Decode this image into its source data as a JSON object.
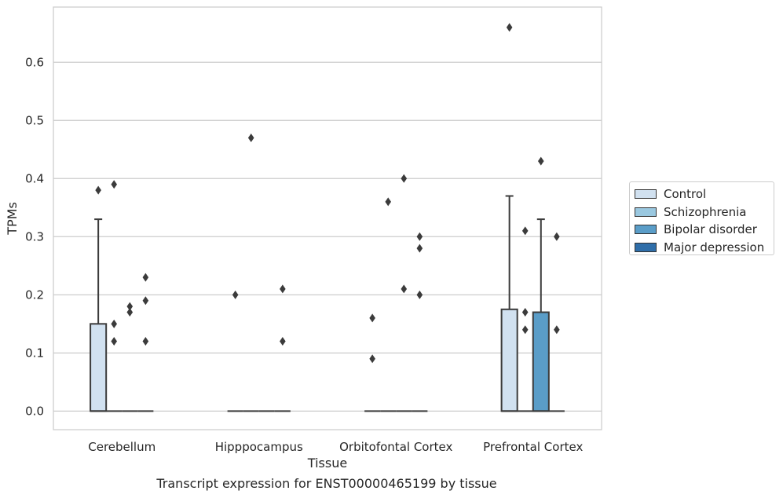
{
  "chart_data": {
    "type": "box",
    "caption": "Transcript expression for ENST00000465199 by tissue",
    "xlabel": "Tissue",
    "ylabel": "TPMs",
    "ylim": [
      -0.032,
      0.695
    ],
    "yticks": [
      "0.0",
      "0.1",
      "0.2",
      "0.3",
      "0.4",
      "0.5",
      "0.6"
    ],
    "grid": "horizontal",
    "legend_position": "right",
    "categories": [
      "Cerebellum",
      "Hipppocampus",
      "Orbitofontal Cortex",
      "Prefrontal Cortex"
    ],
    "series": [
      {
        "name": "Control",
        "color": "#d1e1f0"
      },
      {
        "name": "Schizophrenia",
        "color": "#9ac8e0"
      },
      {
        "name": "Bipolar disorder",
        "color": "#5a9dc8"
      },
      {
        "name": "Major depression",
        "color": "#2f6ea9"
      }
    ],
    "boxes": [
      {
        "category": 0,
        "series": 0,
        "q1": 0,
        "median": 0,
        "q3": 0.15,
        "whisker_low": 0,
        "whisker_high": 0.33,
        "outliers": [
          0.38
        ]
      },
      {
        "category": 0,
        "series": 1,
        "q1": 0,
        "median": 0,
        "q3": 0,
        "whisker_low": 0,
        "whisker_high": 0,
        "outliers": [
          0.39,
          0.15,
          0.12
        ]
      },
      {
        "category": 0,
        "series": 2,
        "q1": 0,
        "median": 0,
        "q3": 0,
        "whisker_low": 0,
        "whisker_high": 0,
        "outliers": [
          0.18,
          0.17
        ]
      },
      {
        "category": 0,
        "series": 3,
        "q1": 0,
        "median": 0,
        "q3": 0,
        "whisker_low": 0,
        "whisker_high": 0,
        "outliers": [
          0.23,
          0.19,
          0.12
        ]
      },
      {
        "category": 1,
        "series": 0,
        "q1": 0,
        "median": 0,
        "q3": 0,
        "whisker_low": 0,
        "whisker_high": 0,
        "outliers": [
          0.2
        ]
      },
      {
        "category": 1,
        "series": 1,
        "q1": 0,
        "median": 0,
        "q3": 0,
        "whisker_low": 0,
        "whisker_high": 0,
        "outliers": [
          0.47
        ]
      },
      {
        "category": 1,
        "series": 2,
        "q1": 0,
        "median": 0,
        "q3": 0,
        "whisker_low": 0,
        "whisker_high": 0,
        "outliers": []
      },
      {
        "category": 1,
        "series": 3,
        "q1": 0,
        "median": 0,
        "q3": 0,
        "whisker_low": 0,
        "whisker_high": 0,
        "outliers": [
          0.21,
          0.12
        ]
      },
      {
        "category": 2,
        "series": 0,
        "q1": 0,
        "median": 0,
        "q3": 0,
        "whisker_low": 0,
        "whisker_high": 0,
        "outliers": [
          0.16,
          0.09
        ]
      },
      {
        "category": 2,
        "series": 1,
        "q1": 0,
        "median": 0,
        "q3": 0,
        "whisker_low": 0,
        "whisker_high": 0,
        "outliers": [
          0.36
        ]
      },
      {
        "category": 2,
        "series": 2,
        "q1": 0,
        "median": 0,
        "q3": 0,
        "whisker_low": 0,
        "whisker_high": 0,
        "outliers": [
          0.4,
          0.21
        ]
      },
      {
        "category": 2,
        "series": 3,
        "q1": 0,
        "median": 0,
        "q3": 0,
        "whisker_low": 0,
        "whisker_high": 0,
        "outliers": [
          0.3,
          0.28,
          0.2
        ]
      },
      {
        "category": 3,
        "series": 0,
        "q1": 0,
        "median": 0,
        "q3": 0.175,
        "whisker_low": 0,
        "whisker_high": 0.37,
        "outliers": [
          0.66
        ]
      },
      {
        "category": 3,
        "series": 1,
        "q1": 0,
        "median": 0,
        "q3": 0,
        "whisker_low": 0,
        "whisker_high": 0,
        "outliers": [
          0.31,
          0.17,
          0.14
        ]
      },
      {
        "category": 3,
        "series": 2,
        "q1": 0,
        "median": 0,
        "q3": 0.17,
        "whisker_low": 0,
        "whisker_high": 0.33,
        "outliers": [
          0.43
        ]
      },
      {
        "category": 3,
        "series": 3,
        "q1": 0,
        "median": 0,
        "q3": 0,
        "whisker_low": 0,
        "whisker_high": 0,
        "outliers": [
          0.3,
          0.14
        ]
      }
    ]
  }
}
